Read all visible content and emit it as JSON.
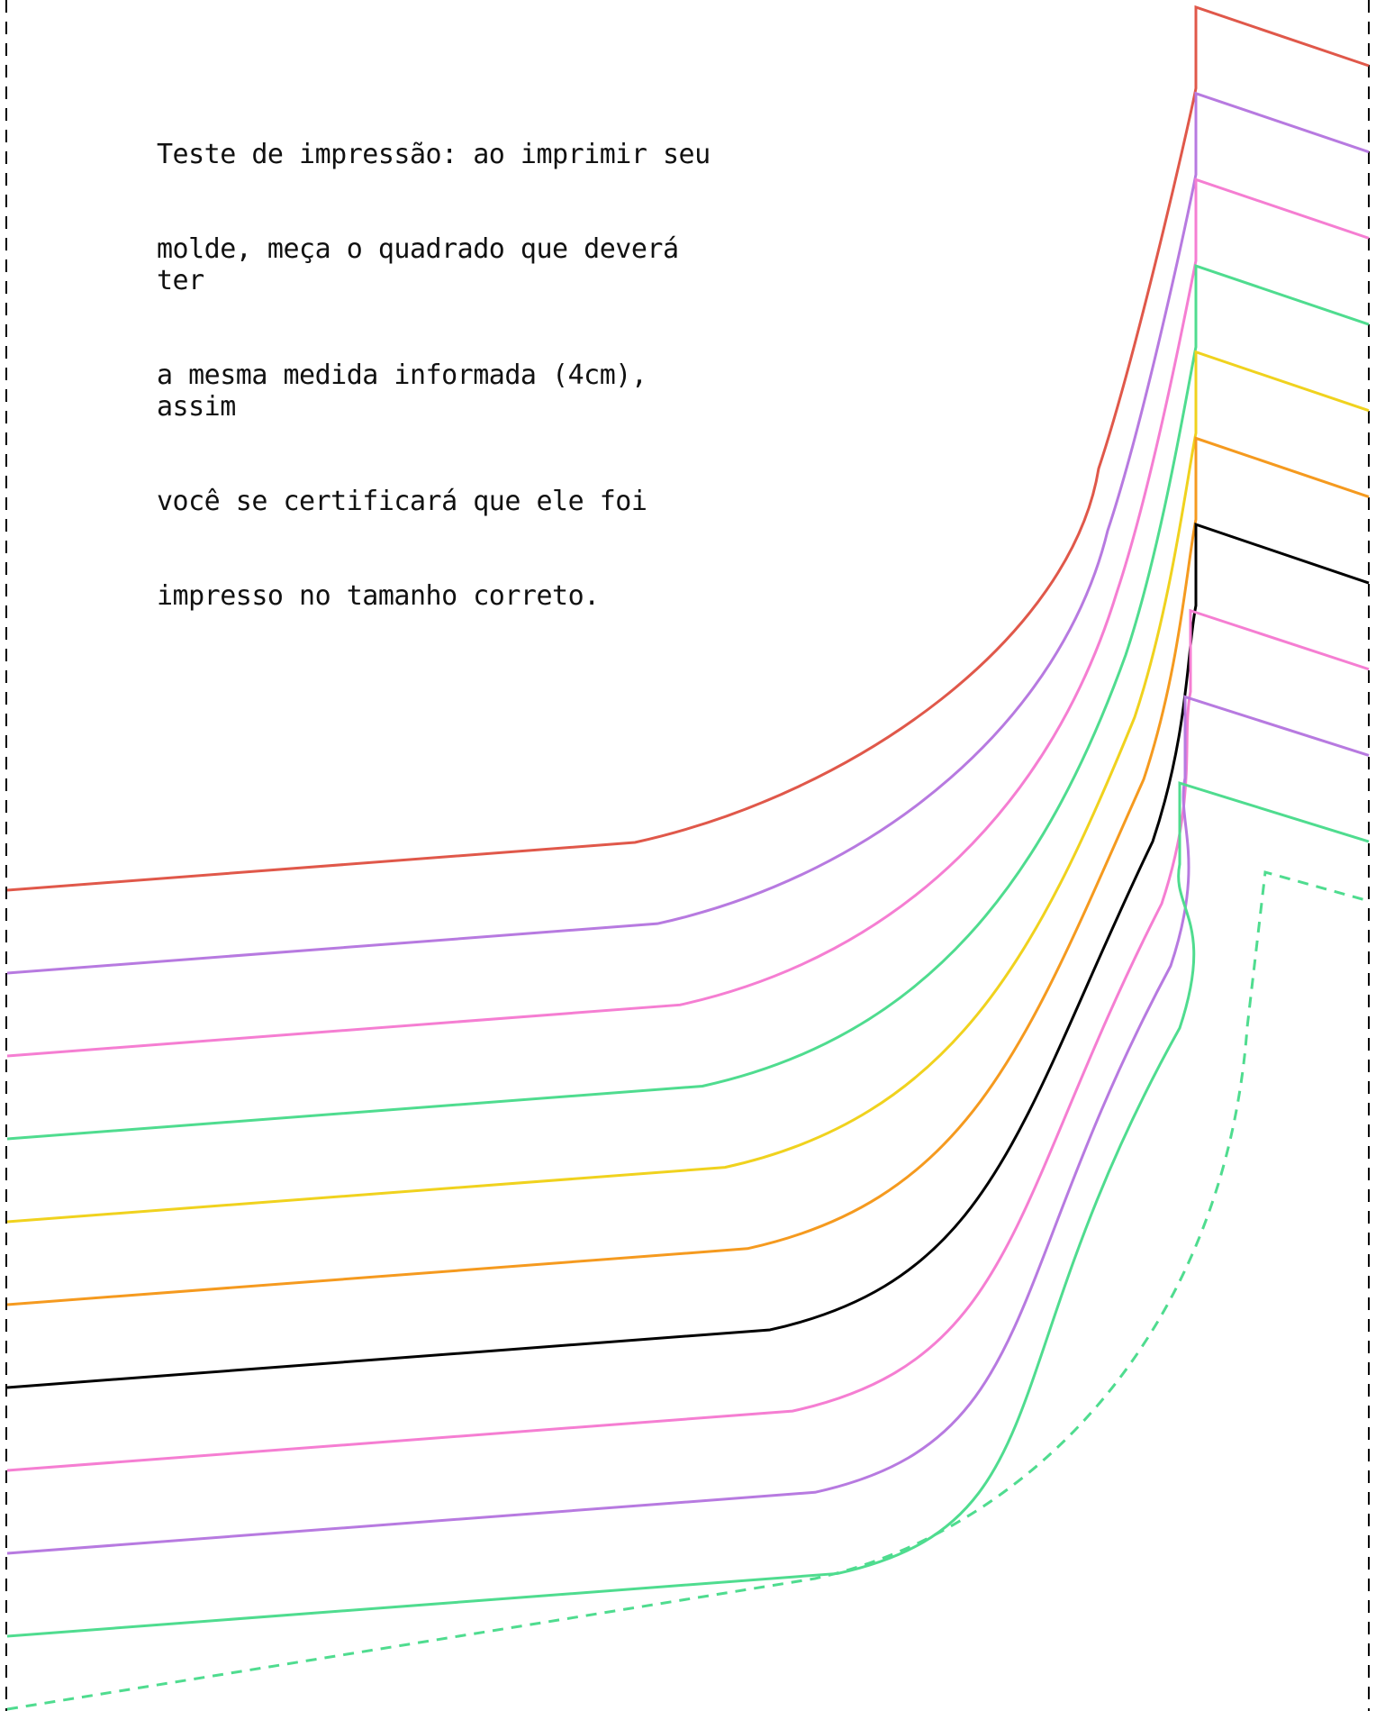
{
  "note": {
    "lines": [
      "Teste de impressão: ao imprimir seu",
      "molde, meça o quadrado que deverá ter",
      "a mesma medida informada (4cm), assim",
      "você se certificará que ele foi",
      "impresso no tamanho correto."
    ]
  },
  "border": {
    "style": "dashed",
    "color": "#000000"
  },
  "size_lines": [
    {
      "color": "#e0584a",
      "style": "solid"
    },
    {
      "color": "#b77ae0",
      "style": "solid"
    },
    {
      "color": "#f57ed2",
      "style": "solid"
    },
    {
      "color": "#4fdc8f",
      "style": "solid"
    },
    {
      "color": "#f0d21e",
      "style": "solid"
    },
    {
      "color": "#f59a1f",
      "style": "solid"
    },
    {
      "color": "#000000",
      "style": "solid"
    },
    {
      "color": "#f57ed2",
      "style": "solid"
    },
    {
      "color": "#b77ae0",
      "style": "solid"
    },
    {
      "color": "#4fdc8f",
      "style": "solid"
    },
    {
      "color": "#4fdc8f",
      "style": "dashed"
    }
  ]
}
